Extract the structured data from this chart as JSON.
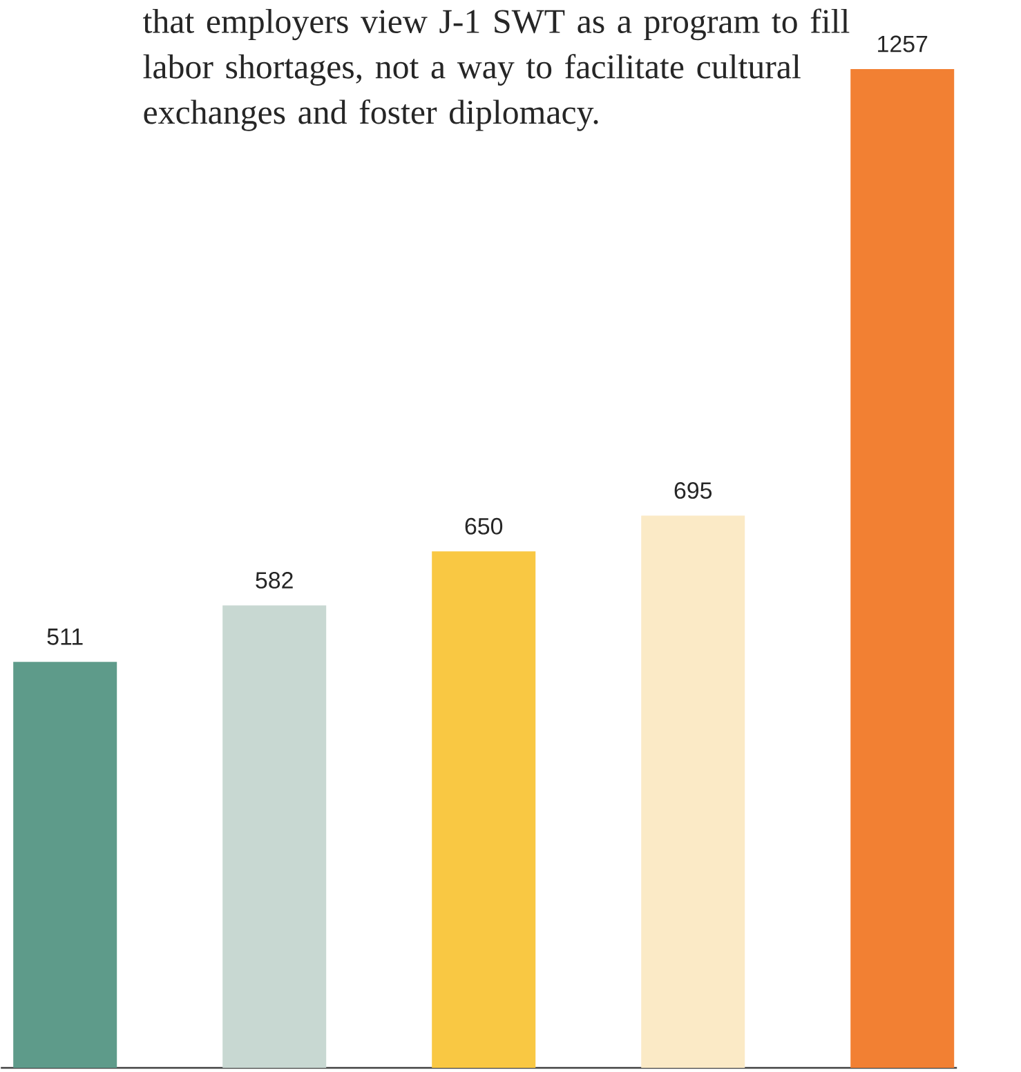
{
  "chart_data": {
    "type": "bar",
    "annotations": [
      "that employers view J-1 SWT as a program to fill labor shortages, not a way to facilitate cultural exchanges and foster diplomacy."
    ],
    "categories": [
      null,
      null,
      null,
      null,
      null
    ],
    "values": [
      511,
      582,
      650,
      695,
      1257
    ],
    "colors": [
      "#5e9b8a",
      "#c8d8d2",
      "#f9c843",
      "#fbeac6",
      "#f28033"
    ],
    "data_labels": true
  }
}
